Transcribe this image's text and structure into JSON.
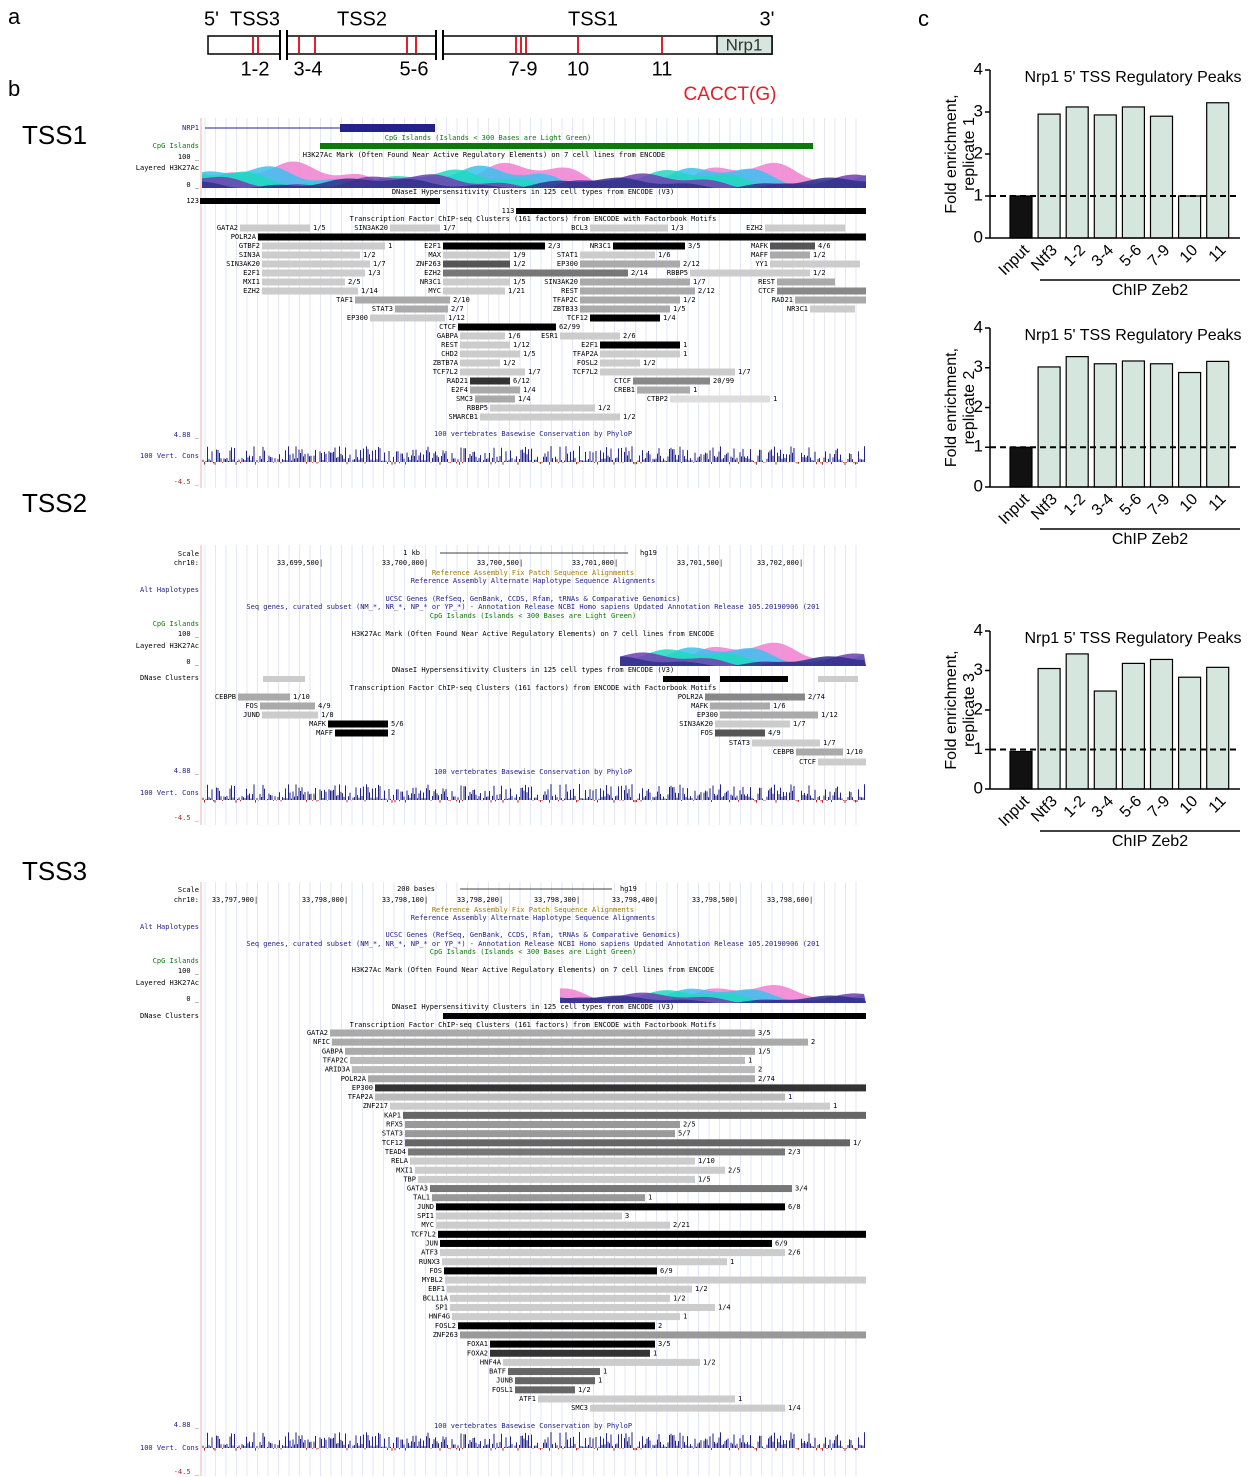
{
  "panels": {
    "a": "a",
    "b": "b",
    "c": "c"
  },
  "gene_diagram": {
    "five_prime": "5'",
    "three_prime": "3'",
    "tss": [
      "TSS3",
      "TSS2",
      "TSS1"
    ],
    "gene": "Nrp1",
    "regions": [
      "1-2",
      "3-4",
      "5-6",
      "7-9",
      "10",
      "11"
    ],
    "motif": "CACCT(G)"
  },
  "browser": [
    {
      "title": "TSS1",
      "left_labels": [
        "NRP1",
        "CpG Islands",
        "100 _",
        "Layered H3K27Ac",
        "0 _",
        "123",
        "4.88 _",
        "100 Vert. Cons",
        "-4.5 _"
      ],
      "track_titles": [
        "CpG Islands (Islands < 300 Bases are Light Green)",
        "H3K27Ac Mark (Often Found Near Active Regulatory Elements) on 7 cell lines from ENCODE",
        "DNaseI Hypersensitivity Clusters in 125 cell types from ENCODE (V3)",
        "113",
        "Transcription Factor ChIP-seq Clusters (161 factors) from ENCODE with Factorbook Motifs",
        "100 vertebrates Basewise Conservation by PhyloP"
      ],
      "factors": [
        {
          "name": "GATA2",
          "score": "1/5"
        },
        {
          "name": "SIN3AK20",
          "score": "1/7"
        },
        {
          "name": "BCL3",
          "score": "1/3"
        },
        {
          "name": "EZH2"
        },
        {
          "name": "POLR2A"
        },
        {
          "name": "GTBF2",
          "score": "1"
        },
        {
          "name": "E2F1",
          "score": "2/3"
        },
        {
          "name": "NR3C1",
          "score": "3/5"
        },
        {
          "name": "MAFK",
          "score": "4/6"
        },
        {
          "name": "SIN3A",
          "score": "1/2"
        },
        {
          "name": "MAX",
          "score": "1/9"
        },
        {
          "name": "STAT1",
          "score": "1/6"
        },
        {
          "name": "MAFF",
          "score": "1/2"
        },
        {
          "name": "SIN3AK20",
          "score": "1/7"
        },
        {
          "name": "ZNF263",
          "score": "1/2"
        },
        {
          "name": "EP300",
          "score": "2/12"
        },
        {
          "name": "YY1"
        },
        {
          "name": "E2F1",
          "score": "1/3"
        },
        {
          "name": "EZH2",
          "score": "2/14"
        },
        {
          "name": "RBBP5",
          "score": "1/2"
        },
        {
          "name": "MXI1",
          "score": "2/5"
        },
        {
          "name": "NR3C1",
          "score": "1/5"
        },
        {
          "name": "SIN3AK20",
          "score": "1/7"
        },
        {
          "name": "REST"
        },
        {
          "name": "EZH2",
          "score": "1/14"
        },
        {
          "name": "MYC",
          "score": "1/21"
        },
        {
          "name": "REST",
          "score": "2/12"
        },
        {
          "name": "CTCF"
        },
        {
          "name": "TAF1",
          "score": "2/10"
        },
        {
          "name": "TFAP2C",
          "score": "1/2"
        },
        {
          "name": "RAD21"
        },
        {
          "name": "STAT3",
          "score": "2/7"
        },
        {
          "name": "ZBTB33",
          "score": "1/5"
        },
        {
          "name": "NR3C1"
        },
        {
          "name": "EP300",
          "score": "1/12"
        },
        {
          "name": "TCF12",
          "score": "1/4"
        },
        {
          "name": "CTCF",
          "score": "62/99"
        },
        {
          "name": "GABPA",
          "score": "1/6"
        },
        {
          "name": "ESR1",
          "score": "2/6"
        },
        {
          "name": "REST",
          "score": "1/12"
        },
        {
          "name": "E2F1",
          "score": "1"
        },
        {
          "name": "CHD2",
          "score": "1/5"
        },
        {
          "name": "TFAP2A",
          "score": "1"
        },
        {
          "name": "ZBTB7A",
          "score": "1/2"
        },
        {
          "name": "FOSL2",
          "score": "1/2"
        },
        {
          "name": "TCF7L2",
          "score": "1/7"
        },
        {
          "name": "TCF7L2",
          "score": "1/7"
        },
        {
          "name": "RAD21",
          "score": "6/12"
        },
        {
          "name": "CTCF",
          "score": "20/99"
        },
        {
          "name": "E2F4",
          "score": "1/4"
        },
        {
          "name": "CREB1",
          "score": "1"
        },
        {
          "name": "SMC3",
          "score": "1/4"
        },
        {
          "name": "CTBP2",
          "score": "1"
        },
        {
          "name": "RBBP5",
          "score": "1/2"
        },
        {
          "name": "SMARCB1",
          "score": "1/2"
        }
      ]
    },
    {
      "title": "TSS2",
      "scale": {
        "label": "1 kb",
        "assembly": "hg19",
        "coords": [
          "33,699,500|",
          "33,700,000|",
          "33,700,500|",
          "33,701,000|",
          "33,701,500|",
          "33,702,000|"
        ]
      },
      "left_labels": [
        "Scale",
        "chr10:",
        "Alt Haplotypes",
        "CpG Islands",
        "100 _",
        "Layered H3K27Ac",
        "0 _",
        "DNase Clusters",
        "4.88 _",
        "100 Vert. Cons",
        "-4.5 _"
      ],
      "track_titles": [
        "Reference Assembly Fix Patch Sequence Alignments",
        "Reference Assembly Alternate Haplotype Sequence Alignments",
        "UCSC Genes (RefSeq, GenBank, CCDS, Rfam, tRNAs & Comparative Genomics)",
        "Seq genes, curated subset (NM_*, NR_*, NP_* or YP_*) - Annotation Release NCBI Homo sapiens Updated Annotation Release 105.20190906 (201",
        "CpG Islands (Islands < 300 Bases are Light Green)",
        "H3K27Ac Mark (Often Found Near Active Regulatory Elements) on 7 cell lines from ENCODE",
        "DNaseI Hypersensitivity Clusters in 125 cell types from ENCODE (V3)",
        "Transcription Factor ChIP-seq Clusters (161 factors) from ENCODE with Factorbook Motifs",
        "100 vertebrates Basewise Conservation by PhyloP"
      ],
      "factors": [
        {
          "name": "CEBPB",
          "score": "1/10"
        },
        {
          "name": "FOS",
          "score": "4/9"
        },
        {
          "name": "JUND",
          "score": "1/8"
        },
        {
          "name": "MAFK",
          "score": "5/6"
        },
        {
          "name": "MAFF",
          "score": "2"
        },
        {
          "name": "POLR2A",
          "score": "2/74"
        },
        {
          "name": "MAFK",
          "score": "1/6"
        },
        {
          "name": "EP300",
          "score": "1/12"
        },
        {
          "name": "SIN3AK20",
          "score": "1/7"
        },
        {
          "name": "FOS",
          "score": "4/9"
        },
        {
          "name": "STAT3",
          "score": "1/7"
        },
        {
          "name": "CEBPB",
          "score": "1/10"
        },
        {
          "name": "CTCF"
        }
      ]
    },
    {
      "title": "TSS3",
      "scale": {
        "label": "200 bases",
        "assembly": "hg19",
        "coords": [
          "33,797,900|",
          "33,798,000|",
          "33,798,100|",
          "33,798,200|",
          "33,798,300|",
          "33,798,400|",
          "33,798,500|",
          "33,798,600|"
        ]
      },
      "left_labels": [
        "Scale",
        "chr10:",
        "Alt Haplotypes",
        "CpG Islands",
        "100 _",
        "Layered H3K27Ac",
        "0 _",
        "DNase Clusters",
        "4.88 _",
        "100 Vert. Cons",
        "-4.5 _"
      ],
      "track_titles": [
        "Reference Assembly Fix Patch Sequence Alignments",
        "Reference Assembly Alternate Haplotype Sequence Alignments",
        "UCSC Genes (RefSeq, GenBank, CCDS, Rfam, tRNAs & Comparative Genomics)",
        "Seq genes, curated subset (NM_*, NR_*, NP_* or YP_*) - Annotation Release NCBI Homo sapiens Updated Annotation Release 105.20190906 (201",
        "CpG Islands (Islands < 300 Bases are Light Green)",
        "H3K27Ac Mark (Often Found Near Active Regulatory Elements) on 7 cell lines from ENCODE",
        "DNaseI Hypersensitivity Clusters in 125 cell types from ENCODE (V3)",
        "Transcription Factor ChIP-seq Clusters (161 factors) from ENCODE with Factorbook Motifs",
        "100 vertebrates Basewise Conservation by PhyloP"
      ],
      "factors": [
        {
          "name": "GATA2",
          "score": "3/5"
        },
        {
          "name": "NFIC",
          "score": "2"
        },
        {
          "name": "GABPA",
          "score": "1/5"
        },
        {
          "name": "TFAP2C",
          "score": "1"
        },
        {
          "name": "ARID3A",
          "score": "2"
        },
        {
          "name": "POLR2A",
          "score": "2/74"
        },
        {
          "name": "EP300"
        },
        {
          "name": "TFAP2A",
          "score": "1"
        },
        {
          "name": "ZNF217",
          "score": "1"
        },
        {
          "name": "KAP1"
        },
        {
          "name": "RFX5",
          "score": "2/5"
        },
        {
          "name": "STAT3",
          "score": "5/7"
        },
        {
          "name": "TCF12",
          "score": "1/"
        },
        {
          "name": "TEAD4",
          "score": "2/3"
        },
        {
          "name": "RELA",
          "score": "1/10"
        },
        {
          "name": "MXI1",
          "score": "2/5"
        },
        {
          "name": "TBP",
          "score": "1/5"
        },
        {
          "name": "GATA3",
          "score": "3/4"
        },
        {
          "name": "TAL1",
          "score": "1"
        },
        {
          "name": "JUND",
          "score": "6/8"
        },
        {
          "name": "SPI1",
          "score": "3"
        },
        {
          "name": "MYC",
          "score": "2/21"
        },
        {
          "name": "TCF7L2"
        },
        {
          "name": "JUN",
          "score": "6/9"
        },
        {
          "name": "ATF3",
          "score": "2/6"
        },
        {
          "name": "RUNX3",
          "score": "1"
        },
        {
          "name": "FOS",
          "score": "6/9"
        },
        {
          "name": "MYBL2"
        },
        {
          "name": "EBF1",
          "score": "1/2"
        },
        {
          "name": "BCL11A",
          "score": "1/2"
        },
        {
          "name": "SP1",
          "score": "1/4"
        },
        {
          "name": "HNF4G",
          "score": "1"
        },
        {
          "name": "FOSL2",
          "score": "2"
        },
        {
          "name": "ZNF263"
        },
        {
          "name": "FOXA1",
          "score": "3/5"
        },
        {
          "name": "FOXA2",
          "score": "1"
        },
        {
          "name": "HNF4A",
          "score": "1/2"
        },
        {
          "name": "BATF",
          "score": "1"
        },
        {
          "name": "JUNB",
          "score": "1"
        },
        {
          "name": "FOSL1",
          "score": "1/2"
        },
        {
          "name": "ATF1",
          "score": "1"
        },
        {
          "name": "SMC3",
          "score": "1/4"
        }
      ]
    }
  ],
  "chart_data": [
    {
      "type": "bar",
      "title": "Nrp1 5' TSS Regulatory Peaks",
      "ylabel": [
        "Fold enrichment,",
        "replicate 1"
      ],
      "group_label": "ChIP Zeb2",
      "categories": [
        "Input",
        "Ntf3",
        "1-2",
        "3-4",
        "5-6",
        "7-9",
        "10",
        "11"
      ],
      "values": [
        1,
        2.95,
        3.12,
        2.93,
        3.12,
        2.9,
        1.0,
        3.22
      ],
      "colors": [
        "#111111",
        "#d5e6de",
        "#d5e6de",
        "#d5e6de",
        "#d5e6de",
        "#d5e6de",
        "#d5e6de",
        "#d5e6de"
      ],
      "reference_line": 1,
      "ylim": [
        0,
        4
      ],
      "yticks": [
        0,
        1,
        2,
        3,
        4
      ]
    },
    {
      "type": "bar",
      "title": "Nrp1 5' TSS Regulatory Peaks",
      "ylabel": [
        "Fold enrichment,",
        "replicate 2"
      ],
      "group_label": "ChIP Zeb2",
      "categories": [
        "Input",
        "Ntf3",
        "1-2",
        "3-4",
        "5-6",
        "7-9",
        "10",
        "11"
      ],
      "values": [
        1,
        3.02,
        3.28,
        3.1,
        3.17,
        3.1,
        2.88,
        3.16
      ],
      "colors": [
        "#111111",
        "#d5e6de",
        "#d5e6de",
        "#d5e6de",
        "#d5e6de",
        "#d5e6de",
        "#d5e6de",
        "#d5e6de"
      ],
      "reference_line": 1,
      "ylim": [
        0,
        4
      ],
      "yticks": [
        0,
        1,
        2,
        3,
        4
      ]
    },
    {
      "type": "bar",
      "title": "Nrp1 5' TSS Regulatory Peaks",
      "ylabel": [
        "Fold enrichment,",
        "replicate 3"
      ],
      "group_label": "ChIP Zeb2",
      "categories": [
        "Input",
        "Ntf3",
        "1-2",
        "3-4",
        "5-6",
        "7-9",
        "10",
        "11"
      ],
      "values": [
        0.95,
        3.05,
        3.42,
        2.48,
        3.18,
        3.28,
        2.83,
        3.08
      ],
      "colors": [
        "#111111",
        "#d5e6de",
        "#d5e6de",
        "#d5e6de",
        "#d5e6de",
        "#d5e6de",
        "#d5e6de",
        "#d5e6de"
      ],
      "reference_line": 1,
      "ylim": [
        0,
        4
      ],
      "yticks": [
        0,
        1,
        2,
        3,
        4
      ]
    }
  ]
}
